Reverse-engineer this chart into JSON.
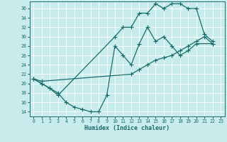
{
  "xlabel": "Humidex (Indice chaleur)",
  "bg_color": "#c8ecec",
  "line_color": "#1a6b6b",
  "grid_color": "#ffffff",
  "xlim": [
    -0.5,
    23.5
  ],
  "ylim": [
    13,
    37.5
  ],
  "yticks": [
    14,
    16,
    18,
    20,
    22,
    24,
    26,
    28,
    30,
    32,
    34,
    36
  ],
  "xticks": [
    0,
    1,
    2,
    3,
    4,
    5,
    6,
    7,
    8,
    9,
    10,
    11,
    12,
    13,
    14,
    15,
    16,
    17,
    18,
    19,
    20,
    21,
    22,
    23
  ],
  "line1_x": [
    0,
    1,
    2,
    3,
    4,
    5,
    6,
    7,
    8,
    9,
    10,
    11,
    12,
    13,
    14,
    15,
    16,
    17,
    18,
    19,
    20,
    22
  ],
  "line1_y": [
    21,
    20,
    19,
    18,
    16,
    15,
    14.5,
    14,
    14,
    17.5,
    28,
    26,
    24,
    28.5,
    32,
    29,
    30,
    28,
    26,
    27,
    28.5,
    28.5
  ],
  "line2_x": [
    0,
    1,
    2,
    3,
    10,
    11,
    12,
    13,
    14,
    15,
    16,
    17,
    18,
    19,
    20,
    21,
    22
  ],
  "line2_y": [
    21,
    20,
    19,
    17.5,
    30,
    32,
    32,
    35,
    35,
    37,
    36,
    37,
    37,
    36,
    36,
    30.5,
    29
  ],
  "line3_x": [
    0,
    1,
    12,
    13,
    14,
    15,
    16,
    17,
    18,
    19,
    20,
    21,
    22
  ],
  "line3_y": [
    21,
    20.5,
    22,
    23,
    24,
    25,
    25.5,
    26,
    27,
    28,
    29,
    30,
    28.5
  ]
}
